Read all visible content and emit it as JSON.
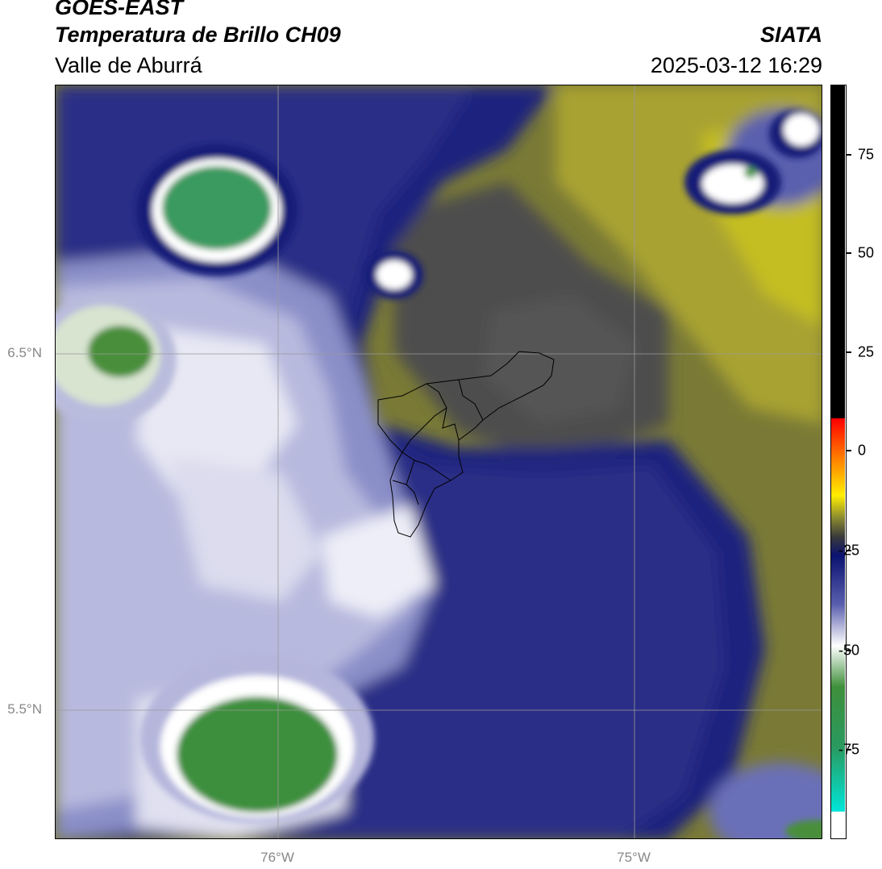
{
  "header": {
    "title_line1": "GOES-EAST",
    "title_line2": "Temperatura de Brillo CH09",
    "subtitle": "Valle de Aburrá",
    "source": "SIATA",
    "datetime": "2025-03-12 16:29"
  },
  "axes": {
    "lat_labels": [
      "6.5°N",
      "5.5°N"
    ],
    "lon_labels": [
      "76°W",
      "75°W"
    ]
  },
  "colorbar": {
    "labels": [
      "75",
      "50",
      "25",
      "0",
      "-25",
      "-50",
      "-75"
    ],
    "min": -95,
    "max": 92
  },
  "colors": {
    "green": "#3f8f3a",
    "white": "#ffffff",
    "lavender": "#a9acd6",
    "navy": "#111a7a",
    "dark_gray": "#4a4a4a",
    "olive": "#8f8f34",
    "yellow_olive": "#c2bc20"
  }
}
